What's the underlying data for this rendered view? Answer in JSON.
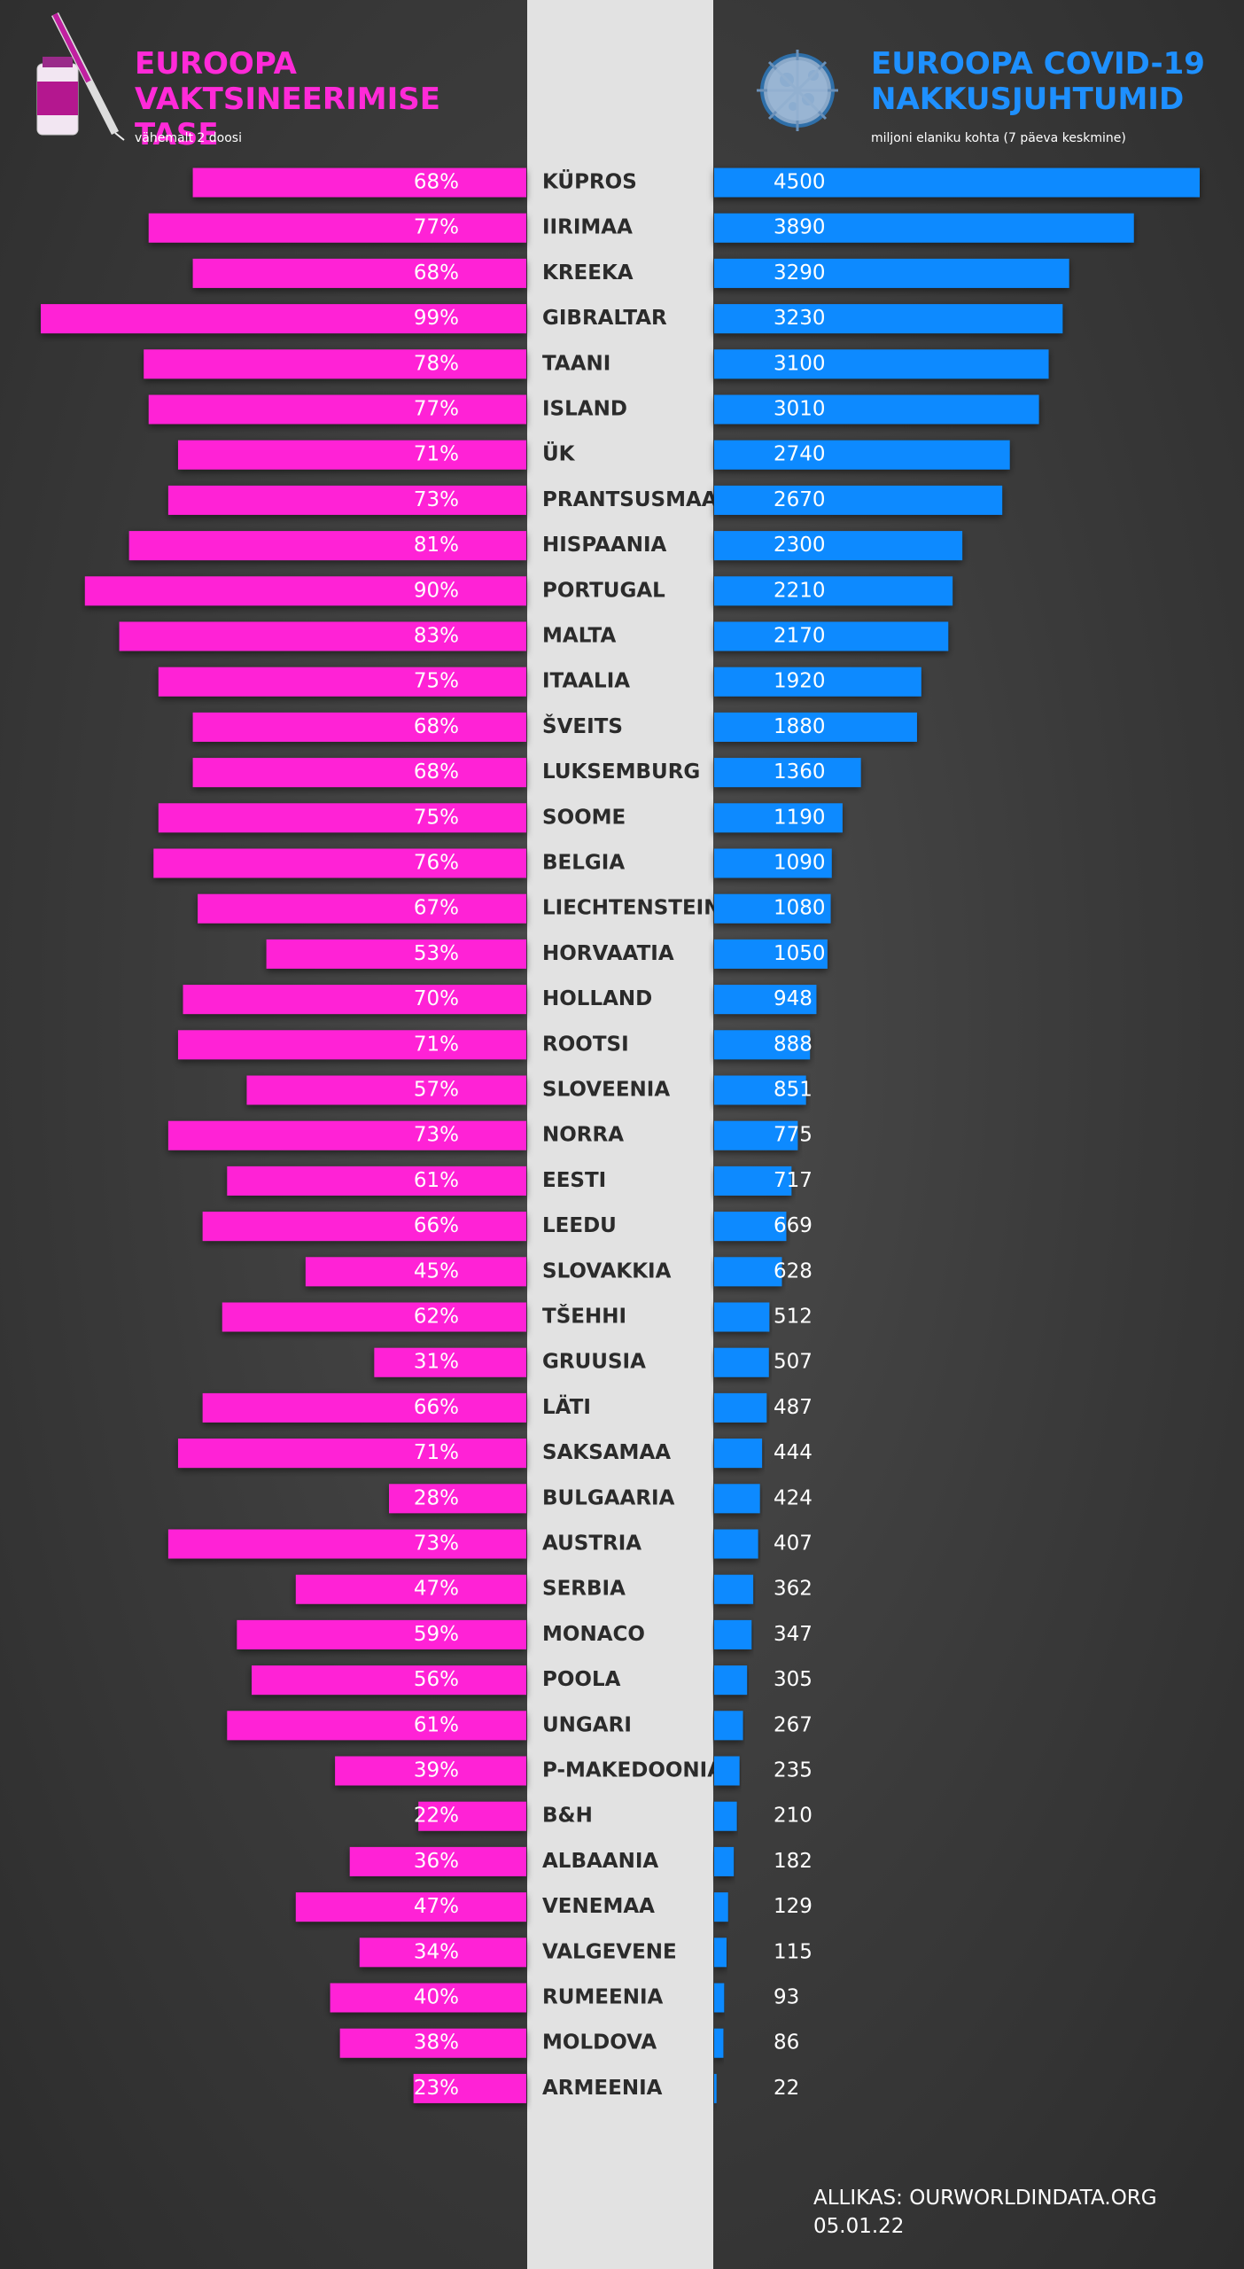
{
  "chart_data": {
    "type": "butterfly",
    "categories": [
      "KÜPROS",
      "IIRIMAA",
      "KREEKA",
      "GIBRALTAR",
      "TAANI",
      "ISLAND",
      "ÜK",
      "PRANTSUSMAA",
      "HISPAANIA",
      "PORTUGAL",
      "MALTA",
      "ITAALIA",
      "ŠVEITS",
      "LUKSEMBURG",
      "SOOME",
      "BELGIA",
      "LIECHTENSTEIN",
      "HORVAATIA",
      "HOLLAND",
      "ROOTSI",
      "SLOVEENIA",
      "NORRA",
      "EESTI",
      "LEEDU",
      "SLOVAKKIA",
      "TŠEHHI",
      "GRUUSIA",
      "LÄTI",
      "SAKSAMAA",
      "BULGAARIA",
      "AUSTRIA",
      "SERBIA",
      "MONACO",
      "POOLA",
      "UNGARI",
      "P-MAKEDOONIA",
      "B&H",
      "ALBAANIA",
      "VENEMAA",
      "VALGEVENE",
      "RUMEENIA",
      "MOLDOVA",
      "ARMEENIA"
    ],
    "series": [
      {
        "name": "EUROOPA VAKTSINEERIMISE TASE",
        "subtitle": "vähemalt 2 doosi",
        "color": "#ff22d6",
        "values": [
          68,
          77,
          68,
          99,
          78,
          77,
          71,
          73,
          81,
          90,
          83,
          75,
          68,
          68,
          75,
          76,
          67,
          53,
          70,
          71,
          57,
          73,
          61,
          66,
          45,
          62,
          31,
          66,
          71,
          28,
          73,
          47,
          59,
          56,
          61,
          39,
          22,
          36,
          47,
          34,
          40,
          38,
          23
        ],
        "value_labels": [
          "68%",
          "77%",
          "68%",
          "99%",
          "78%",
          "77%",
          "71%",
          "73%",
          "81%",
          "90%",
          "83%",
          "75%",
          "68%",
          "68%",
          "75%",
          "76%",
          "67%",
          "53%",
          "70%",
          "71%",
          "57%",
          "73%",
          "61%",
          "66%",
          "45%",
          "62%",
          "31%",
          "66%",
          "71%",
          "28%",
          "73%",
          "47%",
          "59%",
          "56%",
          "61%",
          "39%",
          "22%",
          "36%",
          "47%",
          "34%",
          "40%",
          "38%",
          "23%"
        ]
      },
      {
        "name": "EUROOPA COVID-19 NAKKUSJUHTUMID",
        "subtitle": "miljoni elaniku kohta (7 päeva keskmine)",
        "color": "#0a8aff",
        "values": [
          4500,
          3890,
          3290,
          3230,
          3100,
          3010,
          2740,
          2670,
          2300,
          2210,
          2170,
          1920,
          1880,
          1360,
          1190,
          1090,
          1080,
          1050,
          948,
          888,
          851,
          775,
          717,
          669,
          628,
          512,
          507,
          487,
          444,
          424,
          407,
          362,
          347,
          305,
          267,
          235,
          210,
          182,
          129,
          115,
          93,
          86,
          22
        ]
      }
    ],
    "source": "ALLIKAS: OURWORLDINDATA.ORG",
    "date": "05.01.22"
  }
}
